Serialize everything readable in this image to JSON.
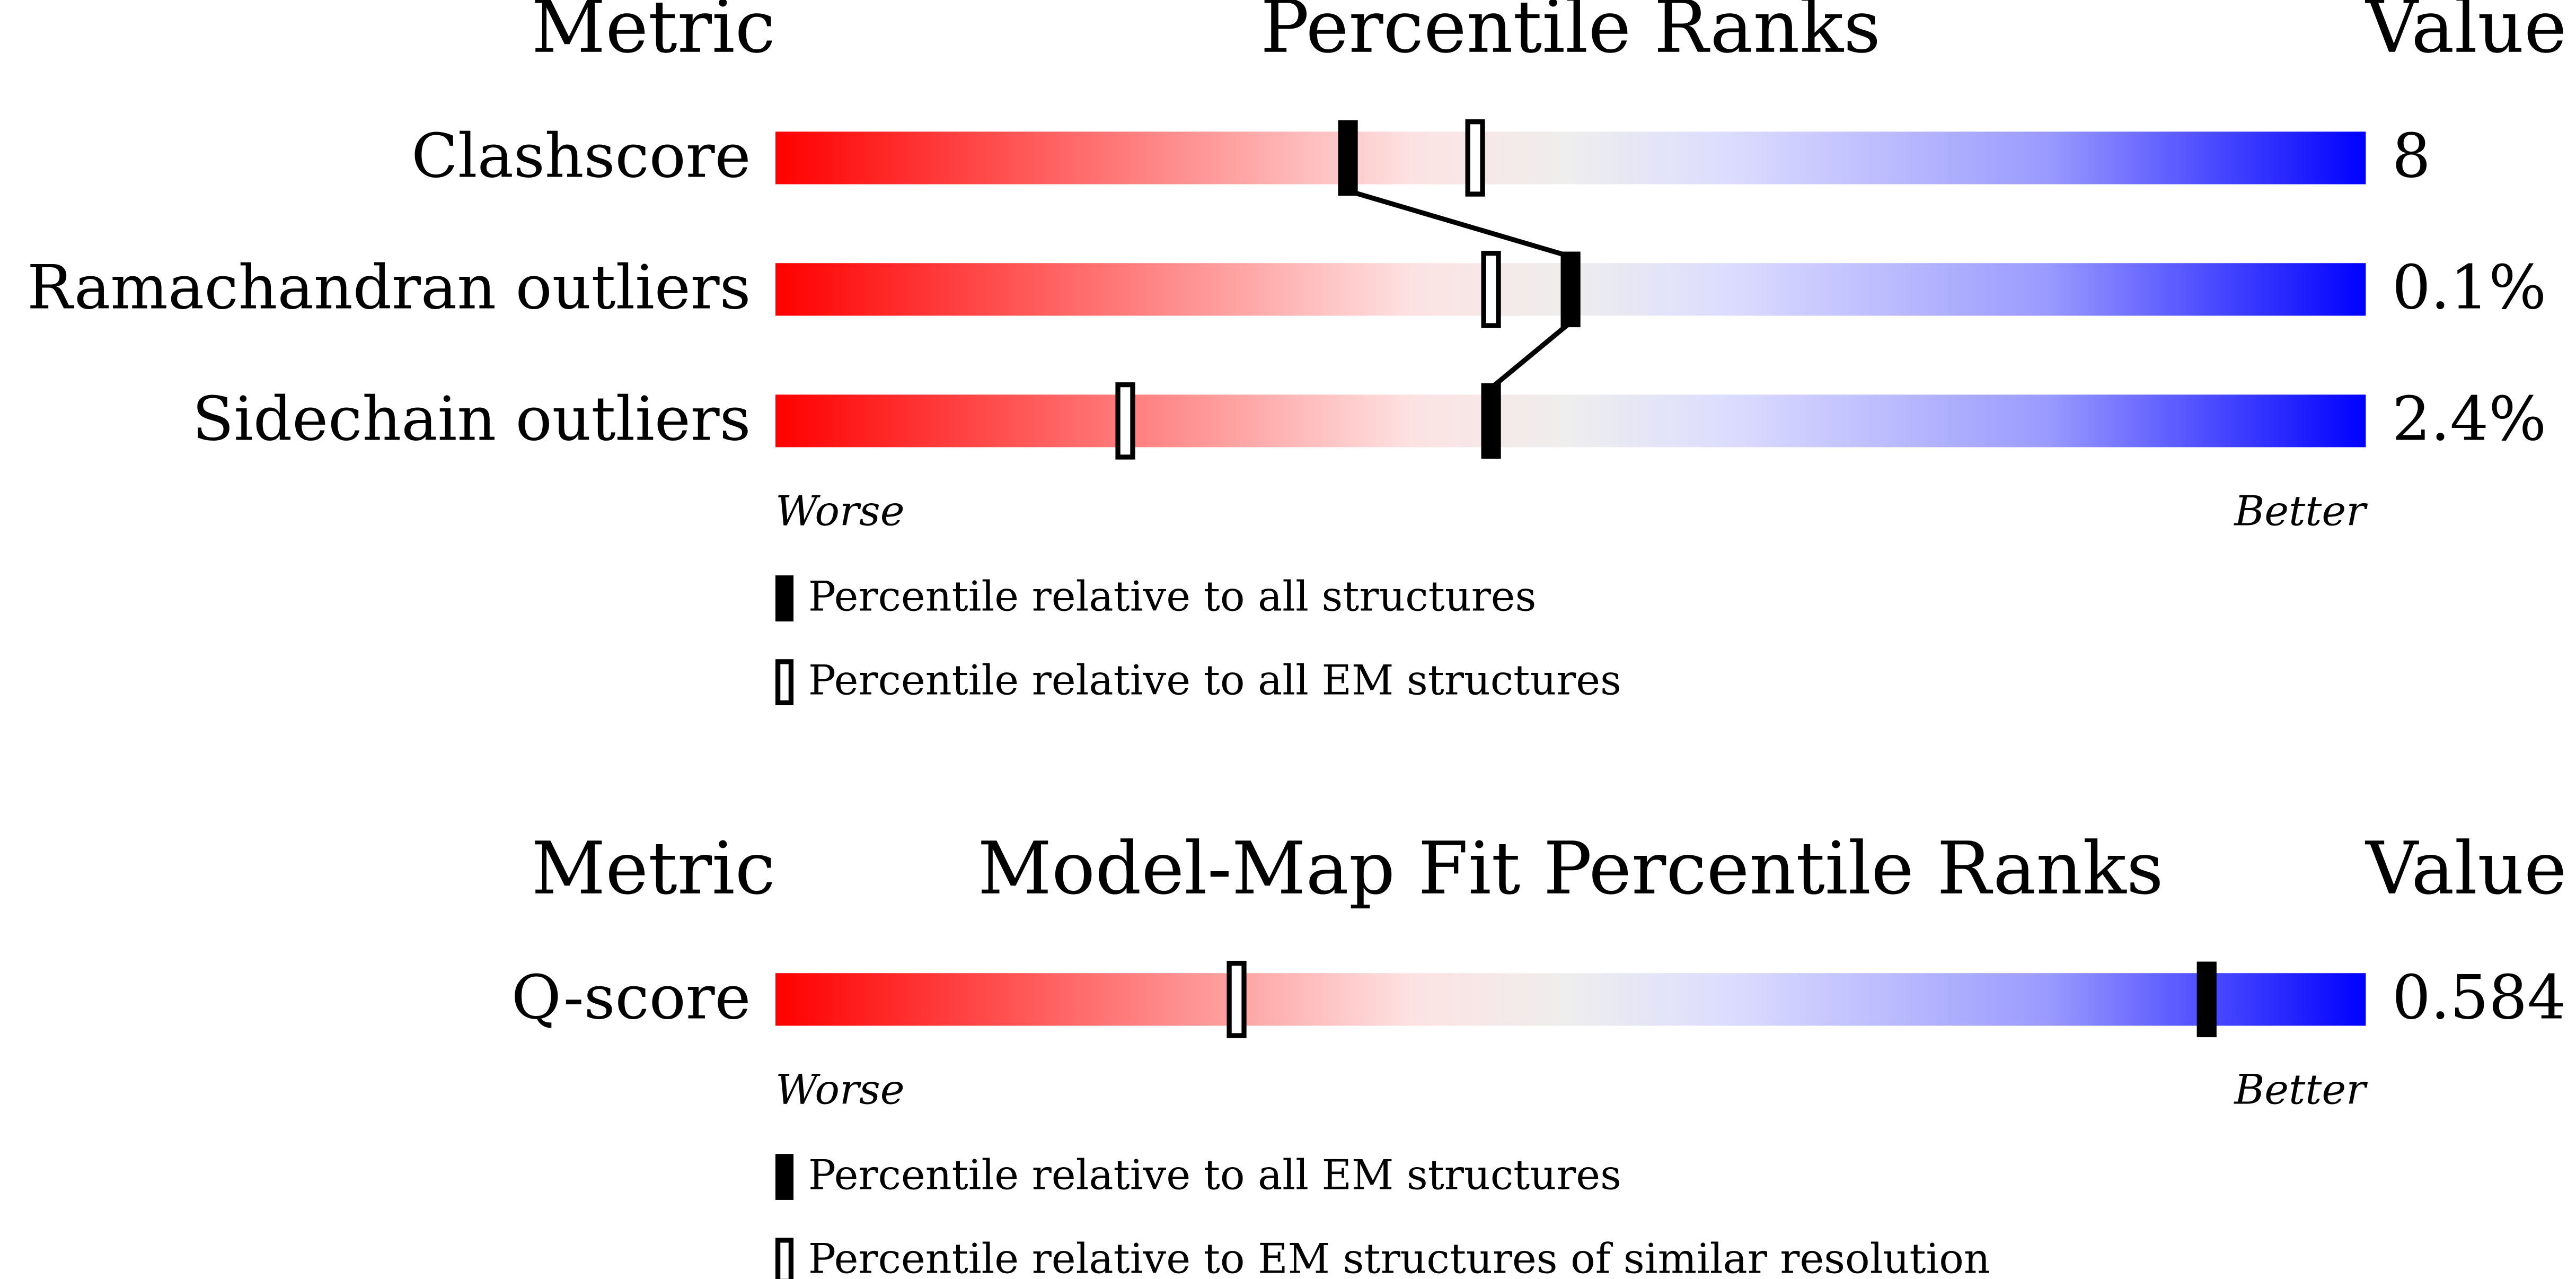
{
  "chart_data": [
    {
      "type": "slider",
      "headers": [
        "Metric",
        "Percentile Ranks",
        "Value"
      ],
      "categories": [
        "Clashscore",
        "Ramachandran outliers",
        "Sidechain outliers"
      ],
      "value_labels": [
        "8",
        "0.1%",
        "2.4%"
      ],
      "series": [
        {
          "name": "Percentile relative to all structures",
          "color": "#000000",
          "fill": "solid",
          "values": [
            36,
            50,
            45
          ]
        },
        {
          "name": "Percentile relative to all EM structures",
          "color": "#000000",
          "fill": "open",
          "values": [
            44,
            45,
            22
          ]
        }
      ],
      "xlim": [
        0,
        100
      ],
      "xlabels": [
        "Worse",
        "Better"
      ],
      "connect": true
    },
    {
      "type": "slider",
      "headers": [
        "Metric",
        "Model-Map Fit Percentile Ranks",
        "Value"
      ],
      "categories": [
        "Q-score"
      ],
      "value_labels": [
        "0.584"
      ],
      "series": [
        {
          "name": "Percentile relative to all EM structures",
          "color": "#000000",
          "fill": "solid",
          "values": [
            90
          ]
        },
        {
          "name": "Percentile relative to EM structures of similar resolution",
          "color": "#000000",
          "fill": "open",
          "values": [
            29
          ]
        }
      ],
      "xlim": [
        0,
        100
      ],
      "xlabels": [
        "Worse",
        "Better"
      ],
      "connect": true
    }
  ]
}
